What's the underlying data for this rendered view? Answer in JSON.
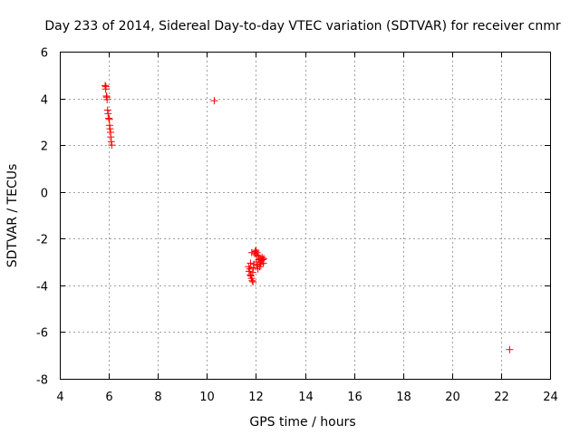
{
  "chart_data": {
    "type": "scatter",
    "title": "Day 233 of 2014, Sidereal Day-to-day VTEC variation (SDTVAR) for receiver cnmr",
    "xlabel": "GPS time / hours",
    "ylabel": "SDTVAR / TECUs",
    "xlim": [
      4,
      24
    ],
    "ylim": [
      -8,
      6
    ],
    "xticks": [
      4,
      6,
      8,
      10,
      12,
      14,
      16,
      18,
      20,
      22,
      24
    ],
    "yticks": [
      -8,
      -6,
      -4,
      -2,
      0,
      2,
      4,
      6
    ],
    "grid": true,
    "marker": "+",
    "color": "#ff0000",
    "series": [
      {
        "name": "SDTVAR",
        "x": [
          5.85,
          5.87,
          5.88,
          5.9,
          5.92,
          5.93,
          5.95,
          5.97,
          6.0,
          6.02,
          6.03,
          6.05,
          6.07,
          6.08,
          6.1,
          6.12,
          10.3,
          11.7,
          11.72,
          11.75,
          11.77,
          11.78,
          11.8,
          11.82,
          11.83,
          11.85,
          11.87,
          11.88,
          11.9,
          11.92,
          11.95,
          11.97,
          12.0,
          12.02,
          12.03,
          12.05,
          12.07,
          12.08,
          12.1,
          12.12,
          12.15,
          12.17,
          12.18,
          12.2,
          12.22,
          12.25,
          12.28,
          12.3,
          12.32,
          22.35
        ],
        "y": [
          4.55,
          4.4,
          4.5,
          4.1,
          4.05,
          3.95,
          3.5,
          3.35,
          3.15,
          3.1,
          2.85,
          2.7,
          2.55,
          2.35,
          2.15,
          2.0,
          3.9,
          -3.2,
          -3.4,
          -3.3,
          -3.55,
          -3.05,
          -3.6,
          -3.7,
          -2.6,
          -3.8,
          -3.45,
          -3.85,
          -3.25,
          -3.1,
          -2.65,
          -2.55,
          -2.5,
          -3.0,
          -2.7,
          -2.6,
          -3.15,
          -3.3,
          -2.75,
          -2.9,
          -3.2,
          -3.0,
          -2.85,
          -3.1,
          -2.95,
          -2.8,
          -2.9,
          -3.05,
          -2.85,
          -6.75
        ]
      }
    ]
  }
}
